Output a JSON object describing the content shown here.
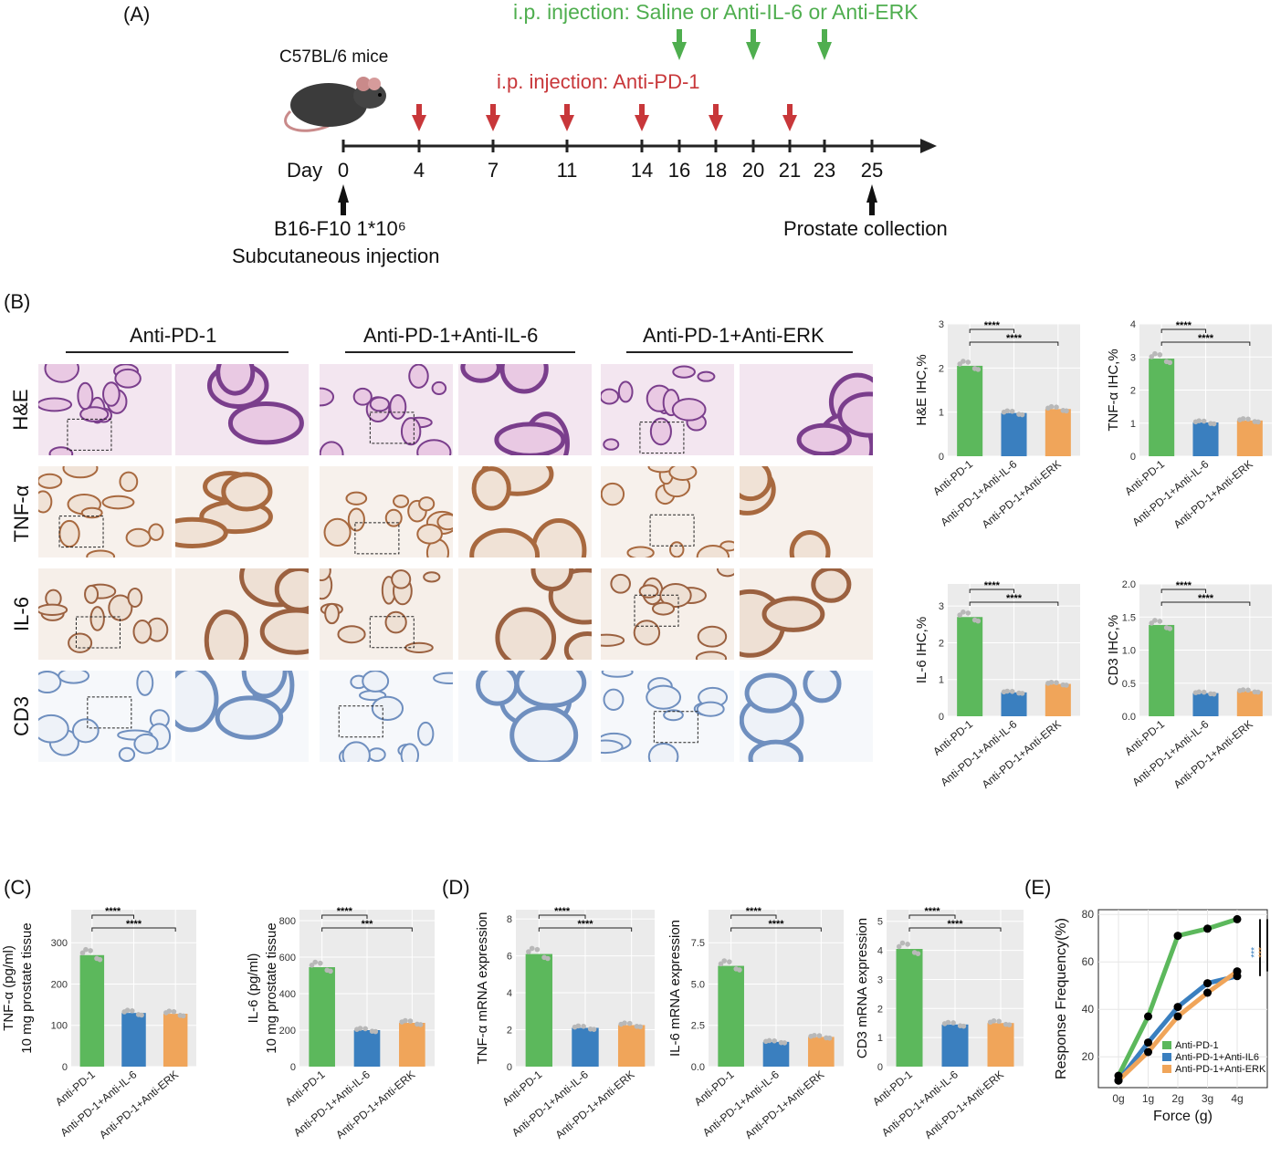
{
  "panel_labels": {
    "A": "(A)",
    "B": "(B)",
    "C": "(C)",
    "D": "(D)",
    "E": "(E)"
  },
  "timeline": {
    "mouse_label": "C57BL/6 mice",
    "green_text": "i.p. injection: Saline or Anti-IL-6 or Anti-ERK",
    "red_text": "i.p. injection: Anti-PD-1",
    "day_label": "Day",
    "days": [
      "0",
      "4",
      "7",
      "11",
      "14",
      "16",
      "18",
      "20",
      "21",
      "23",
      "25"
    ],
    "start_label_1": "B16-F10 1*10⁶",
    "start_label_2": "Subcutaneous injection",
    "end_label": "Prostate collection",
    "colors": {
      "green": "#4fae4f",
      "red": "#c8373a",
      "axis": "#222222"
    }
  },
  "histology": {
    "group_titles": [
      "Anti-PD-1",
      "Anti-PD-1+Anti-IL-6",
      "Anti-PD-1+Anti-ERK"
    ],
    "row_labels": [
      "H&E",
      "TNF-α",
      "IL-6",
      "CD3"
    ]
  },
  "colors": {
    "green": "#5cb85c",
    "blue": "#3a7fbf",
    "orange": "#f0a55a",
    "panel_bg": "#ebebeb"
  },
  "chart_data": [
    {
      "id": "B1",
      "type": "bar",
      "categories": [
        "Anti-PD-1",
        "Anti-PD-1+Anti-IL-6",
        "Anti-PD-1+Anti-ERK"
      ],
      "values": [
        2.05,
        0.98,
        1.07
      ],
      "ylabel": "H&E IHC,%",
      "ylim": [
        0,
        3
      ],
      "yticks": [
        "0",
        "1",
        "2",
        "3"
      ],
      "significance": [
        "****",
        "****"
      ]
    },
    {
      "id": "B2",
      "type": "bar",
      "categories": [
        "Anti-PD-1",
        "Anti-PD-1+Anti-IL-6",
        "Anti-PD-1+Anti-ERK"
      ],
      "values": [
        2.95,
        1.02,
        1.08
      ],
      "ylabel": "TNF-α IHC,%",
      "ylim": [
        0,
        4
      ],
      "yticks": [
        "0",
        "1",
        "2",
        "3",
        "4"
      ],
      "significance": [
        "****",
        "****"
      ]
    },
    {
      "id": "B3",
      "type": "bar",
      "categories": [
        "Anti-PD-1",
        "Anti-PD-1+Anti-IL-6",
        "Anti-PD-1+Anti-ERK"
      ],
      "values": [
        2.7,
        0.65,
        0.88
      ],
      "ylabel": "IL-6 IHC,%",
      "ylim": [
        0,
        3.6
      ],
      "yticks": [
        "0",
        "1",
        "2",
        "3"
      ],
      "significance": [
        "****",
        "****"
      ]
    },
    {
      "id": "B4",
      "type": "bar",
      "categories": [
        "Anti-PD-1",
        "Anti-PD-1+Anti-IL-6",
        "Anti-PD-1+Anti-ERK"
      ],
      "values": [
        1.38,
        0.35,
        0.38
      ],
      "ylabel": "CD3 IHC,%",
      "ylim": [
        0,
        2.0
      ],
      "yticks": [
        "0.0",
        "0.5",
        "1.0",
        "1.5",
        "2.0"
      ],
      "significance": [
        "****",
        "****"
      ]
    },
    {
      "id": "C1",
      "type": "bar",
      "categories": [
        "Anti-PD-1",
        "Anti-PD-1+Anti-IL-6",
        "Anti-PD-1+Anti-ERK"
      ],
      "values": [
        270,
        130,
        128
      ],
      "ylabel": "TNF-α (pg/ml)",
      "ylabel2": "10 mg prostate tissue",
      "ylim": [
        0,
        380
      ],
      "yticks": [
        "0",
        "100",
        "200",
        "300"
      ],
      "significance": [
        "****",
        "****"
      ]
    },
    {
      "id": "C2",
      "type": "bar",
      "categories": [
        "Anti-PD-1",
        "Anti-PD-1+Anti-IL-6",
        "Anti-PD-1+Anti-ERK"
      ],
      "values": [
        545,
        200,
        240
      ],
      "ylabel": "IL-6 (pg/ml)",
      "ylabel2": "10 mg prostate tissue",
      "ylim": [
        0,
        860
      ],
      "yticks": [
        "0",
        "200",
        "400",
        "600",
        "800"
      ],
      "significance": [
        "****",
        "***"
      ]
    },
    {
      "id": "D1",
      "type": "bar",
      "categories": [
        "Anti-PD-1",
        "Anti-PD-1+Anti-IL-6",
        "Anti-PD-1+Anti-ERK"
      ],
      "values": [
        6.1,
        2.1,
        2.25
      ],
      "ylabel": "TNF-α mRNA expression",
      "ylim": [
        0,
        8.5
      ],
      "yticks": [
        "0",
        "2",
        "4",
        "6",
        "8"
      ],
      "significance": [
        "****",
        "****"
      ]
    },
    {
      "id": "D2",
      "type": "bar",
      "categories": [
        "Anti-PD-1",
        "Anti-PD-1+Anti-IL-6",
        "Anti-PD-1+Anti-ERK"
      ],
      "values": [
        6.1,
        1.5,
        1.8
      ],
      "ylabel": "IL-6 mRNA expression",
      "ylim": [
        0,
        9.5
      ],
      "yticks": [
        "0.0",
        "2.5",
        "5.0",
        "7.5"
      ],
      "significance": [
        "****",
        "****"
      ]
    },
    {
      "id": "D3",
      "type": "bar",
      "categories": [
        "Anti-PD-1",
        "Anti-PD-1+Anti-IL-6",
        "Anti-PD-1+Anti-ERK"
      ],
      "values": [
        4.05,
        1.45,
        1.5
      ],
      "ylabel": "CD3 mRNA expression",
      "ylim": [
        0,
        5.4
      ],
      "yticks": [
        "0",
        "1",
        "2",
        "3",
        "4",
        "5"
      ],
      "significance": [
        "****",
        "****"
      ]
    },
    {
      "id": "E",
      "type": "line",
      "x": [
        "0g",
        "1g",
        "2g",
        "3g",
        "4g"
      ],
      "series": [
        {
          "name": "Anti-PD-1",
          "values": [
            12,
            37,
            71,
            74,
            78
          ]
        },
        {
          "name": "Anti-PD-1+Anti-IL6",
          "values": [
            10,
            26,
            41,
            51,
            54
          ]
        },
        {
          "name": "Anti-PD-1+Anti-ERK",
          "values": [
            10,
            22,
            37,
            47,
            56
          ]
        }
      ],
      "xlabel": "Force (g)",
      "ylabel": "Response Frequency(%)",
      "ylim": [
        7,
        82
      ],
      "yticks": [
        "20",
        "40",
        "60",
        "80"
      ],
      "significance": [
        "***",
        "***"
      ],
      "legend": "bottom-right"
    }
  ]
}
